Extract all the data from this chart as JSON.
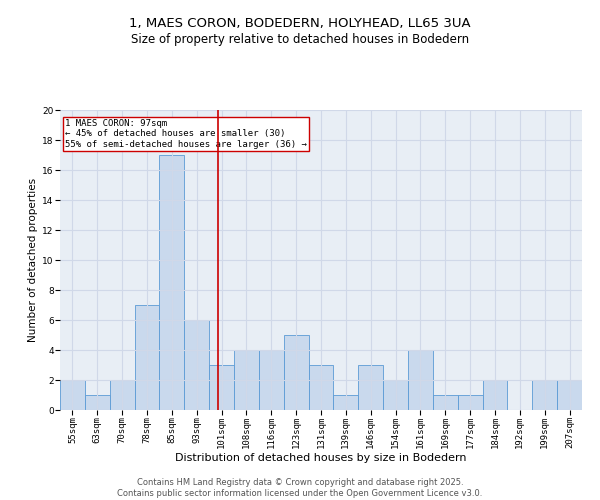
{
  "title_line1": "1, MAES CORON, BODEDERN, HOLYHEAD, LL65 3UA",
  "title_line2": "Size of property relative to detached houses in Bodedern",
  "xlabel": "Distribution of detached houses by size in Bodedern",
  "ylabel": "Number of detached properties",
  "bins": [
    "55sqm",
    "63sqm",
    "70sqm",
    "78sqm",
    "85sqm",
    "93sqm",
    "101sqm",
    "108sqm",
    "116sqm",
    "123sqm",
    "131sqm",
    "139sqm",
    "146sqm",
    "154sqm",
    "161sqm",
    "169sqm",
    "177sqm",
    "184sqm",
    "192sqm",
    "199sqm",
    "207sqm"
  ],
  "bar_heights": [
    2,
    1,
    2,
    7,
    17,
    6,
    3,
    4,
    4,
    5,
    3,
    1,
    3,
    2,
    4,
    1,
    1,
    2,
    0,
    2,
    2
  ],
  "bar_color": "#c9d9ed",
  "bar_edge_color": "#5b9bd5",
  "vline_x": 5.85,
  "vline_color": "#cc0000",
  "annotation_text": "1 MAES CORON: 97sqm\n← 45% of detached houses are smaller (30)\n55% of semi-detached houses are larger (36) →",
  "annotation_fontsize": 6.5,
  "annotation_box_color": "white",
  "annotation_edge_color": "#cc0000",
  "ylim": [
    0,
    20
  ],
  "yticks": [
    0,
    2,
    4,
    6,
    8,
    10,
    12,
    14,
    16,
    18,
    20
  ],
  "grid_color": "#d0d8e8",
  "background_color": "#e8eef5",
  "footer_text": "Contains HM Land Registry data © Crown copyright and database right 2025.\nContains public sector information licensed under the Open Government Licence v3.0.",
  "title_fontsize": 9.5,
  "subtitle_fontsize": 8.5,
  "xlabel_fontsize": 8,
  "ylabel_fontsize": 7.5,
  "tick_fontsize": 6.5,
  "footer_fontsize": 6
}
